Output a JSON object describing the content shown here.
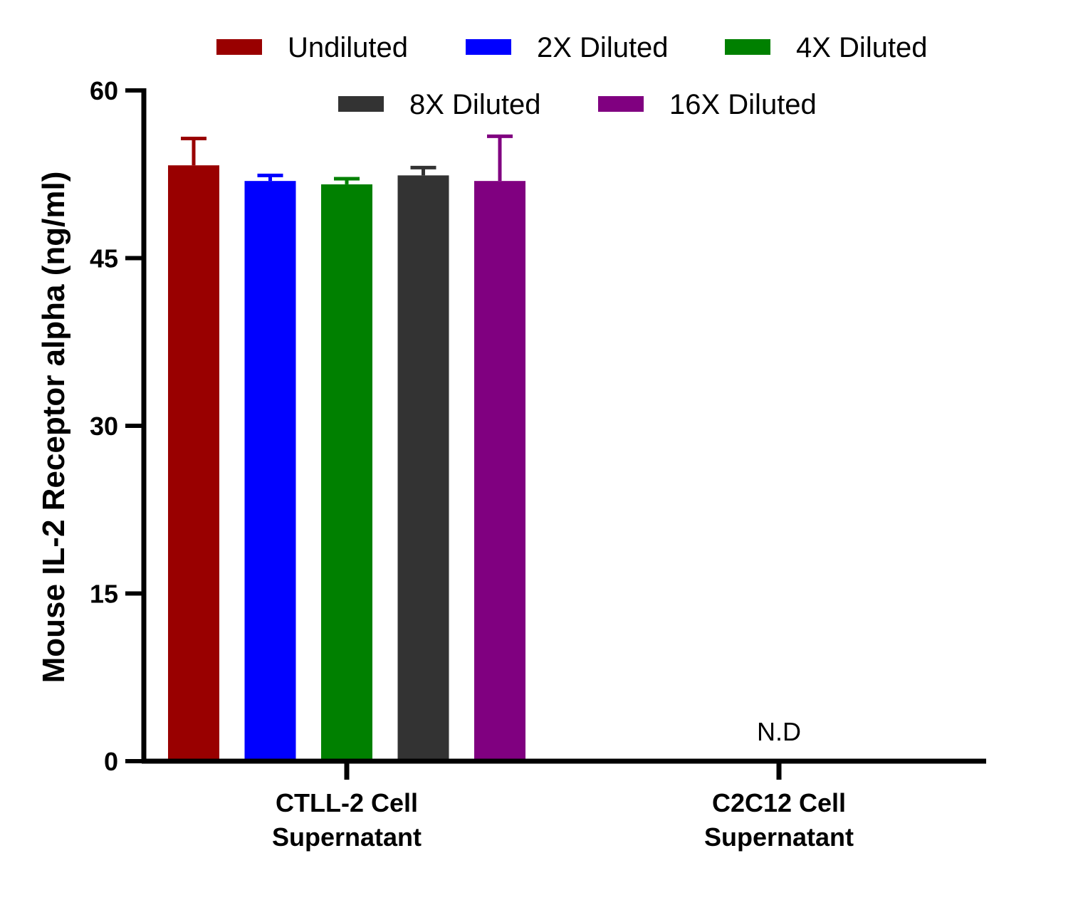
{
  "chart_data": {
    "type": "bar",
    "ylabel": "Mouse IL-2 Receptor alpha (ng/ml)",
    "xlabel": "",
    "ylim": [
      0,
      60
    ],
    "yticks": [
      0,
      15,
      30,
      45,
      60
    ],
    "categories": [
      {
        "line1": "CTLL-2 Cell",
        "line2": "Supernatant"
      },
      {
        "line1": "C2C12 Cell",
        "line2": "Supernatant"
      }
    ],
    "series": [
      {
        "name": "Undiluted",
        "color": "#990000",
        "values": [
          53.3,
          null
        ],
        "errors": [
          2.4,
          null
        ]
      },
      {
        "name": "2X Diluted",
        "color": "#0000ff",
        "values": [
          51.9,
          null
        ],
        "errors": [
          0.5,
          null
        ]
      },
      {
        "name": "4X Diluted",
        "color": "#008000",
        "values": [
          51.6,
          null
        ],
        "errors": [
          0.5,
          null
        ]
      },
      {
        "name": "8X Diluted",
        "color": "#333333",
        "values": [
          52.4,
          null
        ],
        "errors": [
          0.7,
          null
        ]
      },
      {
        "name": "16X Diluted",
        "color": "#800080",
        "values": [
          51.9,
          null
        ],
        "errors": [
          4.0,
          null
        ]
      }
    ],
    "annotations": [
      {
        "category": "C2C12 Cell",
        "text": "N.D"
      }
    ],
    "legend_position": "top",
    "grid": false
  }
}
